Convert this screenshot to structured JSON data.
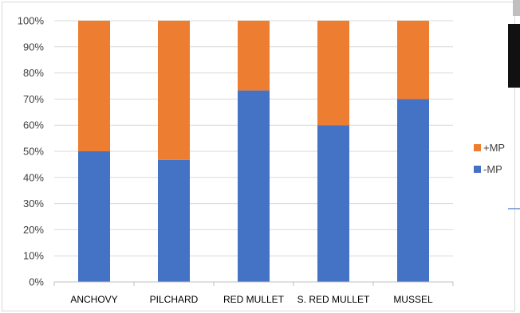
{
  "chart_data": {
    "type": "bar",
    "stacked": "percent",
    "categories": [
      "ANCHOVY",
      "PILCHARD",
      "RED MULLET",
      "S. RED MULLET",
      "MUSSEL"
    ],
    "series": [
      {
        "name": "-MP",
        "color": "#4472C4",
        "values": [
          50,
          46.7,
          73.3,
          60,
          70
        ]
      },
      {
        "name": "+MP",
        "color": "#ED7D31",
        "values": [
          50,
          53.3,
          26.7,
          40,
          30
        ]
      }
    ],
    "ylim": [
      0,
      100
    ],
    "yticks": [
      "0%",
      "10%",
      "20%",
      "30%",
      "40%",
      "50%",
      "60%",
      "70%",
      "80%",
      "90%",
      "100%"
    ],
    "grid": true,
    "legend": {
      "position": "right",
      "entries": [
        "+MP",
        "-MP"
      ]
    },
    "title": "",
    "xlabel": "",
    "ylabel": ""
  }
}
